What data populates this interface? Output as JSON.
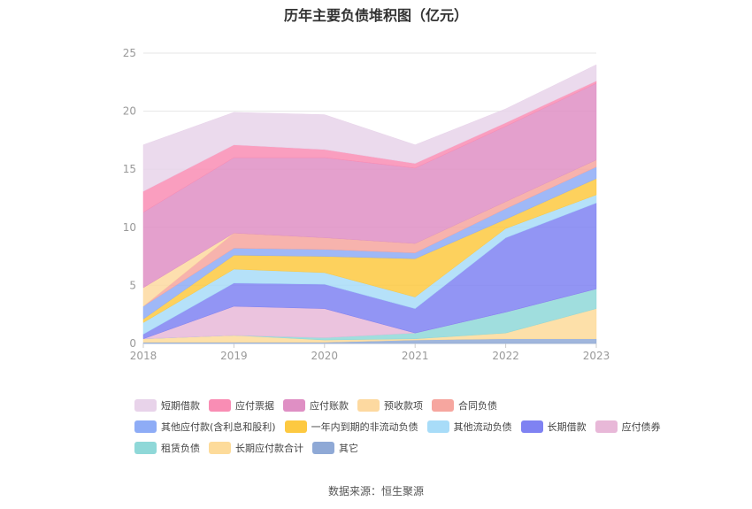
{
  "chart_data": {
    "type": "area",
    "stacked": true,
    "title": "历年主要负债堆积图（亿元）",
    "source": "数据来源：恒生聚源",
    "categories": [
      "2018",
      "2019",
      "2020",
      "2021",
      "2022",
      "2023"
    ],
    "ylim": [
      0,
      25
    ],
    "yticks": [
      "0",
      "5",
      "10",
      "15",
      "20",
      "25"
    ],
    "grid": true,
    "legend_position": "bottom",
    "series": [
      {
        "name": "其它",
        "color": "#8fa9d6",
        "values": [
          0.1,
          0.1,
          0.1,
          0.3,
          0.4,
          0.4
        ]
      },
      {
        "name": "长期应付款合计",
        "color": "#fddb9a",
        "values": [
          0.3,
          0.6,
          0.2,
          0.1,
          0.5,
          2.6
        ]
      },
      {
        "name": "租赁负债",
        "color": "#8fd8d8",
        "values": [
          0,
          0,
          0.2,
          0.5,
          1.8,
          1.7
        ]
      },
      {
        "name": "应付债券",
        "color": "#e8b8d8",
        "values": [
          0,
          2.5,
          2.5,
          0,
          0,
          0
        ]
      },
      {
        "name": "长期借款",
        "color": "#7f82f2",
        "values": [
          0.4,
          2.0,
          2.1,
          2.1,
          6.4,
          7.4
        ]
      },
      {
        "name": "其他流动负债",
        "color": "#a8dcf8",
        "values": [
          1.0,
          1.2,
          1.0,
          1.0,
          0.8,
          0.7
        ]
      },
      {
        "name": "一年内到期的非流动负债",
        "color": "#fdc941",
        "values": [
          0.3,
          1.2,
          1.4,
          3.3,
          0.8,
          1.4
        ]
      },
      {
        "name": "其他应付款(含利息和股利)",
        "color": "#8eacf6",
        "values": [
          1.1,
          0.6,
          0.6,
          0.5,
          0.9,
          1.0
        ]
      },
      {
        "name": "合同负债",
        "color": "#f6a69f",
        "values": [
          0,
          1.3,
          1.0,
          0.8,
          0.6,
          0.6
        ]
      },
      {
        "name": "预收款项",
        "color": "#fdd9a0",
        "values": [
          1.6,
          0,
          0,
          0,
          0,
          0
        ]
      },
      {
        "name": "应付账款",
        "color": "#df8fc4",
        "values": [
          6.5,
          6.5,
          6.9,
          6.5,
          6.5,
          6.6
        ]
      },
      {
        "name": "应付票据",
        "color": "#f98db4",
        "values": [
          1.8,
          1.1,
          0.7,
          0.4,
          0.3,
          0.2
        ]
      },
      {
        "name": "短期借款",
        "color": "#e8d3ea",
        "values": [
          4.0,
          2.8,
          3.0,
          1.6,
          1.2,
          1.4
        ]
      }
    ],
    "legend_order": [
      "短期借款",
      "应付票据",
      "应付账款",
      "预收款项",
      "合同负债",
      "其他应付款(含利息和股利)",
      "一年内到期的非流动负债",
      "其他流动负债",
      "长期借款",
      "应付债券",
      "租赁负债",
      "长期应付款合计",
      "其它"
    ]
  }
}
